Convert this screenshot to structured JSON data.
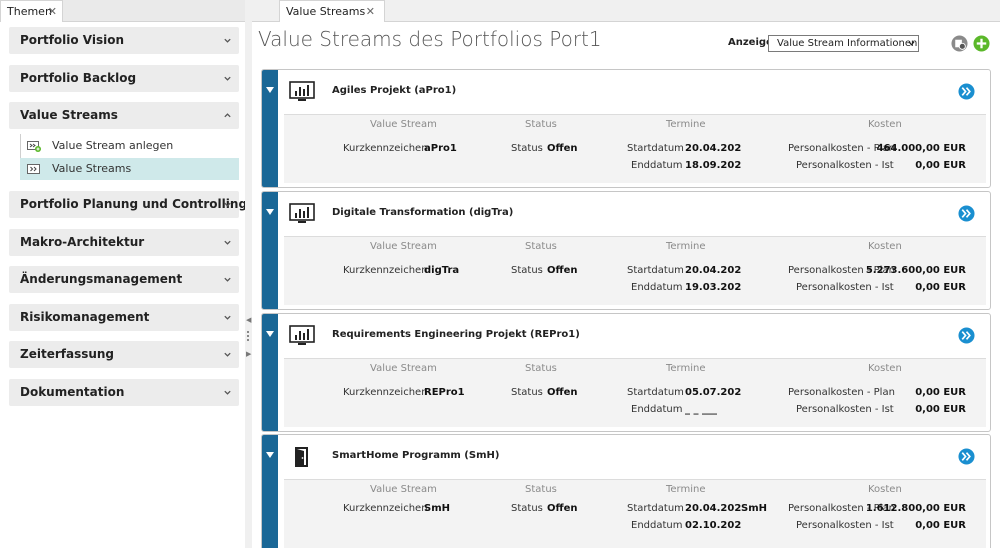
{
  "left_panel": {
    "tab_label": "Themen",
    "tab_close": "✕",
    "sections": [
      {
        "label": "Portfolio Vision",
        "expanded": false
      },
      {
        "label": "Portfolio Backlog",
        "expanded": false
      },
      {
        "label": "Value Streams",
        "expanded": true,
        "items": [
          {
            "label": "Value Stream anlegen",
            "icon": "add-value-stream-icon",
            "active": false
          },
          {
            "label": "Value Streams",
            "icon": "value-streams-icon",
            "active": true
          }
        ]
      },
      {
        "label": "Portfolio Planung und Controlling",
        "expanded": false
      },
      {
        "label": "Makro-Architektur",
        "expanded": false
      },
      {
        "label": "Änderungsmanagement",
        "expanded": false
      },
      {
        "label": "Risikomanagement",
        "expanded": false
      },
      {
        "label": "Zeiterfassung",
        "expanded": false
      },
      {
        "label": "Dokumentation",
        "expanded": false
      }
    ]
  },
  "right_panel": {
    "tab_label": "Value Streams",
    "tab_close": "✕",
    "page_title": "Value Streams des Portfolios Port1",
    "anzeige_label": "Anzeige",
    "anzeige_select_value": "Value Stream Informationen",
    "header_icons": [
      "settings-icon",
      "add-icon"
    ]
  },
  "column_headers": {
    "value_stream": "Value Stream",
    "status": "Status",
    "termine": "Termine",
    "kosten": "Kosten"
  },
  "field_labels": {
    "kurzkennzeichen": "Kurzkennzeichen",
    "status": "Status",
    "startdatum": "Startdatum",
    "enddatum": "Enddatum",
    "plan": "Personalkosten - Plan",
    "ist": "Personalkosten - Ist"
  },
  "cards": [
    {
      "title": "Agiles Projekt (aPro1)",
      "icon": "monitor-chart-icon",
      "kurz": "aPro1",
      "status": "Offen",
      "start": "20.04.202",
      "end": "18.09.202",
      "extra": "",
      "plan": "464.000,00 EUR",
      "ist": "0,00 EUR"
    },
    {
      "title": "Digitale Transformation (digTra)",
      "icon": "monitor-chart-icon",
      "kurz": "digTra",
      "status": "Offen",
      "start": "20.04.202",
      "end": "19.03.202",
      "extra": "",
      "plan": "5.273.600,00 EUR",
      "ist": "0,00 EUR"
    },
    {
      "title": "Requirements Engineering Projekt (REPro1)",
      "icon": "monitor-chart-icon",
      "kurz": "REPro1",
      "status": "Offen",
      "start": "05.07.202",
      "end": "_ _ ___",
      "extra": "",
      "plan": "0,00 EUR",
      "ist": "0,00 EUR"
    },
    {
      "title": "SmartHome Programm (SmH)",
      "icon": "door-icon",
      "kurz": "SmH",
      "status": "Offen",
      "start": "20.04.202",
      "end": "02.10.202",
      "extra": "SmH",
      "plan": "1.612.800,00 EUR",
      "ist": "0,00 EUR"
    }
  ],
  "colors": {
    "accent": "#1a6796",
    "go_button": "#1a8fd0",
    "add_button": "#5bb82a",
    "active_item_bg": "#cfe9ea"
  }
}
